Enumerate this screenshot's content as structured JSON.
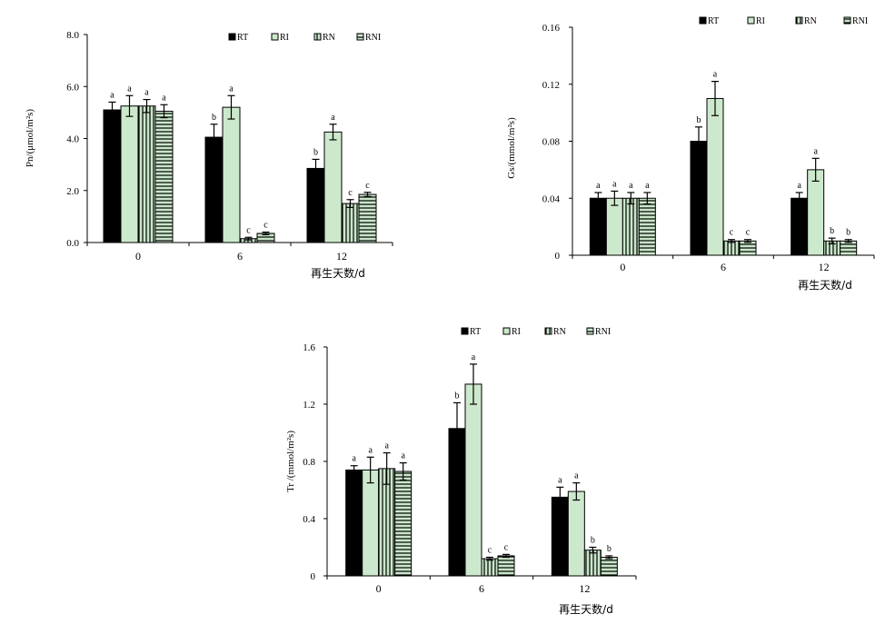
{
  "colors": {
    "RT": "#000000",
    "RI": "#cde9cd",
    "RN": "#c9e6c9",
    "RNI": "#c9e6c9",
    "stroke": "#000000"
  },
  "chart_data": [
    {
      "type": "bar",
      "ylabel": "Pn/(μmol/m²s)",
      "xlabel": "再生天数/d",
      "ylim": [
        0,
        8
      ],
      "yticks": [
        "0.0",
        "2.0",
        "4.0",
        "6.0",
        "8.0"
      ],
      "categories": [
        "0",
        "6",
        "12"
      ],
      "legend_position": "top-right",
      "series": [
        {
          "name": "RT",
          "values": [
            5.1,
            4.05,
            2.85
          ],
          "errors": [
            0.3,
            0.5,
            0.35
          ],
          "labels": [
            "a",
            "b",
            "b"
          ]
        },
        {
          "name": "RI",
          "values": [
            5.25,
            5.2,
            4.25
          ],
          "errors": [
            0.4,
            0.45,
            0.3
          ],
          "labels": [
            "a",
            "a",
            "a"
          ]
        },
        {
          "name": "RN",
          "values": [
            5.25,
            0.15,
            1.5
          ],
          "errors": [
            0.25,
            0.05,
            0.15
          ],
          "labels": [
            "a",
            "c",
            "c"
          ]
        },
        {
          "name": "RNI",
          "values": [
            5.05,
            0.35,
            1.85
          ],
          "errors": [
            0.25,
            0.05,
            0.08
          ],
          "labels": [
            "a",
            "c",
            "c"
          ]
        }
      ]
    },
    {
      "type": "bar",
      "ylabel": "Gs/(mmol/m²s)",
      "xlabel": "再生天数/d",
      "ylim": [
        0,
        0.16
      ],
      "yticks": [
        "0",
        "0.04",
        "0.08",
        "0.12",
        "0.16"
      ],
      "categories": [
        "0",
        "6",
        "12"
      ],
      "legend_position": "top-right",
      "series": [
        {
          "name": "RT",
          "values": [
            0.04,
            0.08,
            0.04
          ],
          "errors": [
            0.004,
            0.01,
            0.004
          ],
          "labels": [
            "a",
            "b",
            "a"
          ]
        },
        {
          "name": "RI",
          "values": [
            0.04,
            0.11,
            0.06
          ],
          "errors": [
            0.005,
            0.012,
            0.008
          ],
          "labels": [
            "a",
            "a",
            "a"
          ]
        },
        {
          "name": "RN",
          "values": [
            0.04,
            0.01,
            0.01
          ],
          "errors": [
            0.004,
            0.001,
            0.002
          ],
          "labels": [
            "a",
            "c",
            "b"
          ]
        },
        {
          "name": "RNI",
          "values": [
            0.04,
            0.01,
            0.01
          ],
          "errors": [
            0.004,
            0.001,
            0.001
          ],
          "labels": [
            "a",
            "c",
            "b"
          ]
        }
      ]
    },
    {
      "type": "bar",
      "ylabel": "Tr /(mmol/m²s)",
      "xlabel": "再生天数/d",
      "ylim": [
        0,
        1.6
      ],
      "yticks": [
        "0",
        "0.4",
        "0.8",
        "1.2",
        "1.6"
      ],
      "categories": [
        "0",
        "6",
        "12"
      ],
      "legend_position": "top-right",
      "series": [
        {
          "name": "RT",
          "values": [
            0.74,
            1.03,
            0.55
          ],
          "errors": [
            0.03,
            0.18,
            0.07
          ],
          "labels": [
            "a",
            "b",
            "a"
          ]
        },
        {
          "name": "RI",
          "values": [
            0.74,
            1.34,
            0.59
          ],
          "errors": [
            0.09,
            0.14,
            0.06
          ],
          "labels": [
            "a",
            "a",
            "a"
          ]
        },
        {
          "name": "RN",
          "values": [
            0.75,
            0.12,
            0.18
          ],
          "errors": [
            0.11,
            0.01,
            0.02
          ],
          "labels": [
            "a",
            "c",
            "b"
          ]
        },
        {
          "name": "RNI",
          "values": [
            0.73,
            0.14,
            0.13
          ],
          "errors": [
            0.06,
            0.01,
            0.01
          ],
          "labels": [
            "a",
            "c",
            "b"
          ]
        }
      ]
    }
  ]
}
